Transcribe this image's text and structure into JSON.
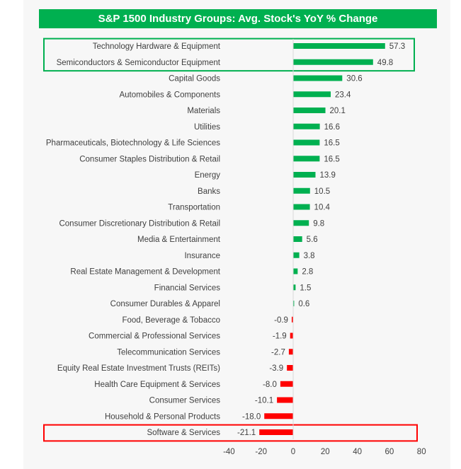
{
  "chart_data": {
    "type": "bar",
    "orientation": "horizontal",
    "title": "S&P 1500 Industry Groups: Avg. Stock's YoY % Change",
    "categories": [
      "Technology Hardware & Equipment",
      "Semiconductors & Semiconductor Equipment",
      "Capital Goods",
      "Automobiles & Components",
      "Materials",
      "Utilities",
      "Pharmaceuticals, Biotechnology & Life Sciences",
      "Consumer Staples Distribution & Retail",
      "Energy",
      "Banks",
      "Transportation",
      "Consumer Discretionary Distribution & Retail",
      "Media & Entertainment",
      "Insurance",
      "Real Estate Management & Development",
      "Financial Services",
      "Consumer Durables & Apparel",
      "Food, Beverage & Tobacco",
      "Commercial & Professional Services",
      "Telecommunication Services",
      "Equity Real Estate Investment Trusts (REITs)",
      "Health Care Equipment & Services",
      "Consumer Services",
      "Household & Personal Products",
      "Software & Services"
    ],
    "values": [
      57.3,
      49.8,
      30.6,
      23.4,
      20.1,
      16.6,
      16.5,
      16.5,
      13.9,
      10.5,
      10.4,
      9.8,
      5.6,
      3.8,
      2.8,
      1.5,
      0.6,
      -0.9,
      -1.9,
      -2.7,
      -3.9,
      -8.0,
      -10.1,
      -18.0,
      -21.1
    ],
    "labels": [
      "57.3",
      "49.8",
      "30.6",
      "23.4",
      "20.1",
      "16.6",
      "16.5",
      "16.5",
      "13.9",
      "10.5",
      "10.4",
      "9.8",
      "5.6",
      "3.8",
      "2.8",
      "1.5",
      "0.6",
      "-0.9",
      "-1.9",
      "-2.7",
      "-3.9",
      "-8.0",
      "-10.1",
      "-18.0",
      "-21.1"
    ],
    "xlim": [
      -40,
      80
    ],
    "xticks": [
      -40,
      -20,
      0,
      20,
      40,
      60,
      80
    ],
    "xlabel": "",
    "ylabel": "",
    "grid": false,
    "colors": {
      "positive": "#00b050",
      "negative": "#ff0000"
    },
    "highlights": [
      {
        "categories": [
          "Technology Hardware & Equipment",
          "Semiconductors & Semiconductor Equipment"
        ],
        "color": "#00b050"
      },
      {
        "categories": [
          "Software & Services"
        ],
        "color": "#ff0000"
      }
    ]
  }
}
